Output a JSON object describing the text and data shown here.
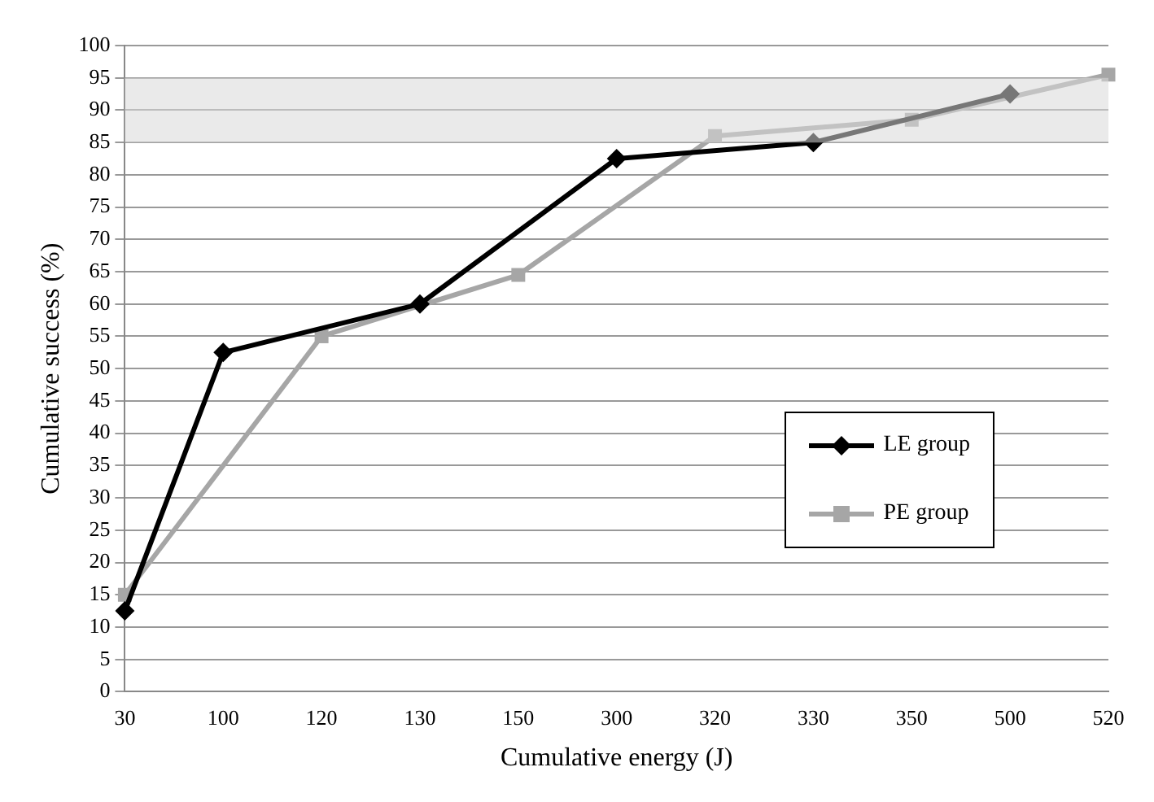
{
  "chart_data": {
    "type": "line",
    "xlabel": "Cumulative energy (J)",
    "ylabel": "Cumulative success (%)",
    "categories": [
      "30",
      "100",
      "120",
      "130",
      "150",
      "300",
      "320",
      "330",
      "350",
      "500",
      "520"
    ],
    "series": [
      {
        "name": "LE group",
        "color": "#000000",
        "marker": "diamond",
        "values": [
          12.5,
          52.5,
          null,
          60,
          null,
          82.5,
          null,
          85,
          null,
          92.5,
          null
        ]
      },
      {
        "name": "PE group",
        "color": "#a6a6a6",
        "marker": "square",
        "values": [
          15,
          null,
          55,
          null,
          64.5,
          null,
          86,
          null,
          88.5,
          null,
          95.5
        ]
      }
    ],
    "ylim": [
      0,
      100
    ],
    "yticks": [
      0,
      5,
      10,
      15,
      20,
      25,
      30,
      35,
      40,
      45,
      50,
      55,
      60,
      65,
      70,
      75,
      80,
      85,
      90,
      95,
      100
    ],
    "bands": [
      {
        "axis": "y",
        "from": 85,
        "to": 95,
        "color": "#d9d9d9"
      }
    ],
    "grid": "y",
    "legend": "right"
  }
}
